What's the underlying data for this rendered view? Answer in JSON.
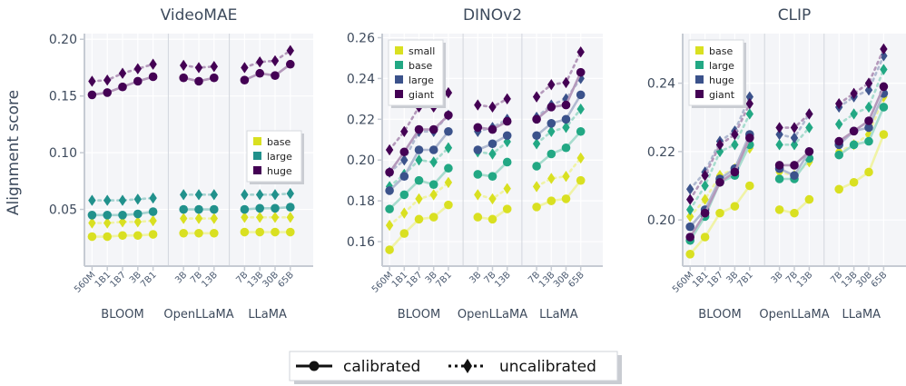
{
  "figure": {
    "ylabel": "Alignment score",
    "x_tick_labels": [
      "560M",
      "1B1",
      "1B7",
      "3B",
      "7B1",
      "3B",
      "7B",
      "13B",
      "7B",
      "13B",
      "30B",
      "65B"
    ],
    "groups": [
      "BLOOM",
      "OpenLLaMA",
      "LLaMA"
    ],
    "legend_bottom": {
      "calibrated": "calibrated",
      "uncalibrated": "uncalibrated"
    }
  },
  "chart_data": [
    {
      "type": "line",
      "title": "VideoMAE",
      "ylim": [
        0.0,
        0.205
      ],
      "yticks": [
        "0.05",
        "0.10",
        "0.15",
        "0.20"
      ],
      "ytick_values": [
        0.05,
        0.1,
        0.15,
        0.2
      ],
      "legend_position": "center-right",
      "series": [
        {
          "name": "base",
          "color": "#d9e021",
          "calibrated": [
            0.026,
            0.026,
            0.027,
            0.027,
            0.028,
            0.029,
            0.029,
            0.029,
            0.03,
            0.03,
            0.03,
            0.03
          ],
          "uncalibrated": [
            0.038,
            0.038,
            0.039,
            0.039,
            0.04,
            0.042,
            0.042,
            0.042,
            0.043,
            0.043,
            0.043,
            0.043
          ]
        },
        {
          "name": "large",
          "color": "#21918c",
          "calibrated": [
            0.045,
            0.045,
            0.045,
            0.046,
            0.048,
            0.05,
            0.05,
            0.05,
            0.05,
            0.051,
            0.051,
            0.052
          ],
          "uncalibrated": [
            0.058,
            0.058,
            0.058,
            0.059,
            0.06,
            0.063,
            0.063,
            0.063,
            0.063,
            0.063,
            0.063,
            0.064
          ]
        },
        {
          "name": "huge",
          "color": "#440154",
          "calibrated": [
            0.151,
            0.153,
            0.158,
            0.163,
            0.167,
            0.166,
            0.163,
            0.166,
            0.164,
            0.17,
            0.168,
            0.178
          ],
          "uncalibrated": [
            0.163,
            0.164,
            0.17,
            0.174,
            0.178,
            0.177,
            0.175,
            0.176,
            0.175,
            0.18,
            0.181,
            0.19
          ]
        }
      ]
    },
    {
      "type": "line",
      "title": "DINOv2",
      "ylim": [
        0.148,
        0.262
      ],
      "yticks": [
        "0.16",
        "0.18",
        "0.20",
        "0.22",
        "0.24",
        "0.26"
      ],
      "ytick_values": [
        0.16,
        0.18,
        0.2,
        0.22,
        0.24,
        0.26
      ],
      "legend_position": "top-left",
      "series": [
        {
          "name": "small",
          "color": "#d9e021",
          "calibrated": [
            0.156,
            0.164,
            0.171,
            0.172,
            0.178,
            0.172,
            0.171,
            0.176,
            0.177,
            0.18,
            0.181,
            0.19
          ],
          "uncalibrated": [
            0.168,
            0.174,
            0.181,
            0.183,
            0.189,
            0.183,
            0.181,
            0.186,
            0.187,
            0.191,
            0.192,
            0.201
          ]
        },
        {
          "name": "base",
          "color": "#22a884",
          "calibrated": [
            0.176,
            0.183,
            0.19,
            0.188,
            0.196,
            0.193,
            0.192,
            0.199,
            0.197,
            0.203,
            0.206,
            0.214
          ],
          "uncalibrated": [
            0.187,
            0.193,
            0.2,
            0.199,
            0.206,
            0.204,
            0.203,
            0.209,
            0.208,
            0.214,
            0.216,
            0.225
          ]
        },
        {
          "name": "large",
          "color": "#3b528b",
          "calibrated": [
            0.185,
            0.192,
            0.205,
            0.205,
            0.214,
            0.205,
            0.208,
            0.212,
            0.212,
            0.218,
            0.22,
            0.232
          ],
          "uncalibrated": [
            0.194,
            0.2,
            0.214,
            0.214,
            0.222,
            0.214,
            0.216,
            0.22,
            0.221,
            0.227,
            0.23,
            0.24
          ]
        },
        {
          "name": "giant",
          "color": "#440154",
          "calibrated": [
            0.194,
            0.204,
            0.215,
            0.215,
            0.222,
            0.216,
            0.215,
            0.219,
            0.22,
            0.226,
            0.227,
            0.243
          ],
          "uncalibrated": [
            0.205,
            0.214,
            0.226,
            0.226,
            0.233,
            0.227,
            0.226,
            0.23,
            0.231,
            0.237,
            0.238,
            0.253
          ]
        }
      ]
    },
    {
      "type": "line",
      "title": "CLIP",
      "ylim": [
        0.1865,
        0.2545
      ],
      "yticks": [
        "0.20",
        "0.22",
        "0.24"
      ],
      "ytick_values": [
        0.2,
        0.22,
        0.24
      ],
      "legend_position": "top-left",
      "series": [
        {
          "name": "base",
          "color": "#d9e021",
          "calibrated": [
            0.19,
            0.195,
            0.202,
            0.204,
            0.21,
            0.203,
            0.202,
            0.206,
            0.209,
            0.211,
            0.214,
            0.225
          ],
          "uncalibrated": [
            0.201,
            0.206,
            0.213,
            0.215,
            0.221,
            0.214,
            0.213,
            0.217,
            0.22,
            0.222,
            0.225,
            0.236
          ]
        },
        {
          "name": "large",
          "color": "#22a884",
          "calibrated": [
            0.194,
            0.201,
            0.211,
            0.213,
            0.222,
            0.212,
            0.212,
            0.218,
            0.219,
            0.222,
            0.223,
            0.233
          ],
          "uncalibrated": [
            0.203,
            0.21,
            0.22,
            0.222,
            0.231,
            0.222,
            0.222,
            0.227,
            0.228,
            0.231,
            0.233,
            0.244
          ]
        },
        {
          "name": "huge",
          "color": "#3b528b",
          "calibrated": [
            0.198,
            0.203,
            0.212,
            0.215,
            0.225,
            0.215,
            0.213,
            0.22,
            0.222,
            0.226,
            0.227,
            0.237
          ],
          "uncalibrated": [
            0.209,
            0.214,
            0.223,
            0.226,
            0.236,
            0.225,
            0.224,
            0.231,
            0.233,
            0.236,
            0.238,
            0.248
          ]
        },
        {
          "name": "giant",
          "color": "#440154",
          "calibrated": [
            0.195,
            0.202,
            0.211,
            0.214,
            0.224,
            0.216,
            0.216,
            0.22,
            0.223,
            0.226,
            0.229,
            0.239
          ],
          "uncalibrated": [
            0.206,
            0.213,
            0.222,
            0.225,
            0.234,
            0.227,
            0.227,
            0.231,
            0.234,
            0.237,
            0.24,
            0.25
          ]
        }
      ]
    }
  ]
}
